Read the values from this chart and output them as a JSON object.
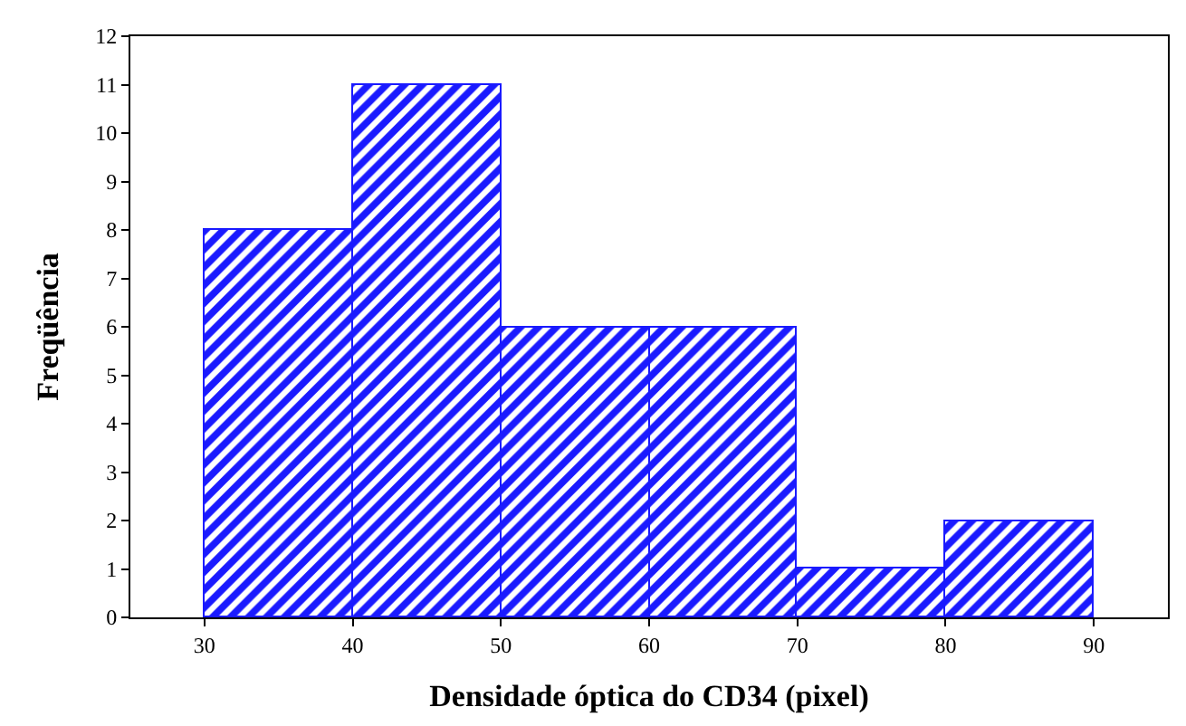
{
  "chart_data": {
    "type": "histogram",
    "xlabel": "Densidade óptica do CD34 (pixel)",
    "ylabel": "Freqüência",
    "bins": [
      30,
      40,
      50,
      60,
      70,
      80,
      90
    ],
    "values": [
      8,
      11,
      6,
      6,
      1,
      2
    ],
    "color": "#1a1aff",
    "xlim": [
      25,
      95
    ],
    "xticks": [
      30,
      40,
      50,
      60,
      70,
      80,
      90
    ],
    "ylim": [
      0,
      12
    ],
    "yticks": [
      0,
      1,
      2,
      3,
      4,
      5,
      6,
      7,
      8,
      9,
      10,
      11,
      12
    ]
  }
}
